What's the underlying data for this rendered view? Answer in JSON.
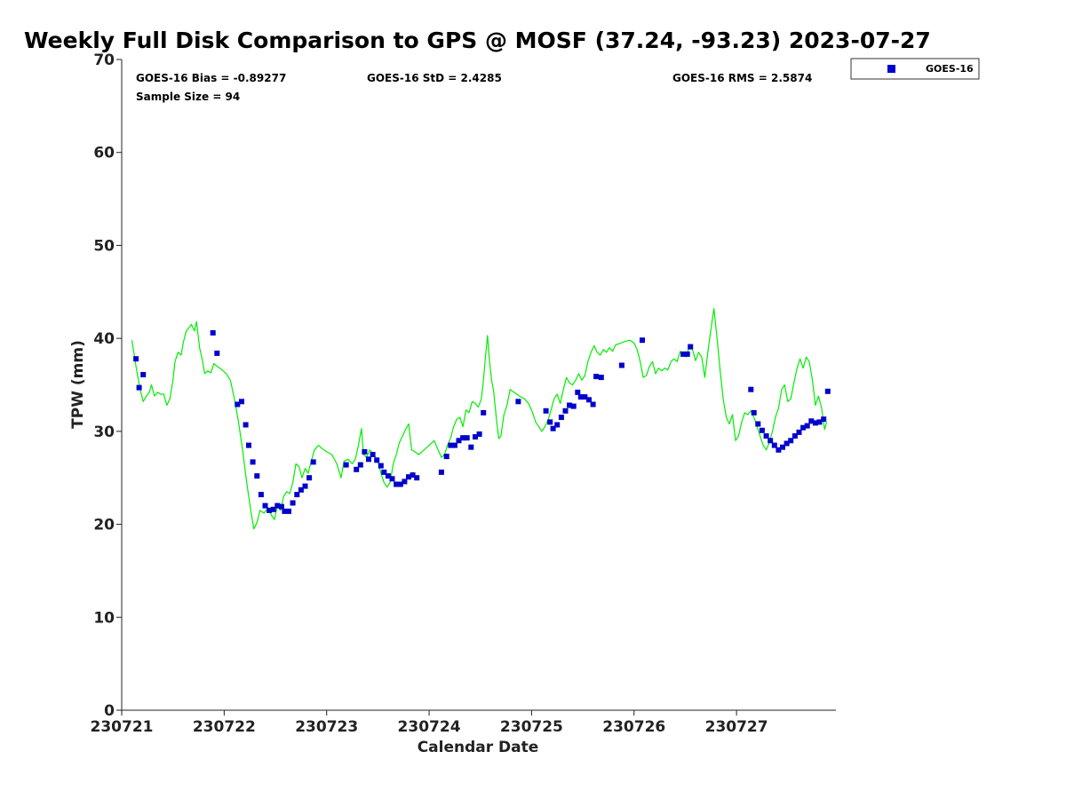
{
  "chart_data": {
    "type": "scatter",
    "title": "Weekly Full Disk Comparison to GPS @ MOSF (37.24, -93.23) 2023-07-27",
    "xlabel": "Calendar Date",
    "ylabel": "TPW (mm)",
    "xlim": [
      0,
      6.97
    ],
    "ylim": [
      0,
      70
    ],
    "x_ticks": [
      0,
      1,
      2,
      3,
      4,
      5,
      6
    ],
    "x_tick_labels": [
      "230721",
      "230722",
      "230723",
      "230724",
      "230725",
      "230726",
      "230727"
    ],
    "y_ticks": [
      0,
      10,
      20,
      30,
      40,
      50,
      60,
      70
    ],
    "y_tick_labels": [
      "0",
      "10",
      "20",
      "30",
      "40",
      "50",
      "60",
      "70"
    ],
    "stats": {
      "bias": "GOES-16 Bias = -0.89277",
      "std": "GOES-16 StD = 2.4285",
      "rms": "GOES-16 RMS = 2.5874",
      "sample": "Sample Size = 94"
    },
    "legend": {
      "position": "top-right, outside plot",
      "entries": [
        "GOES-16"
      ]
    },
    "colors": {
      "gps_line": "#00ee00",
      "goes_marker": "#0000cc"
    },
    "series": [
      {
        "name": "GPS",
        "style": "line",
        "points": [
          [
            0.1,
            39.8
          ],
          [
            0.14,
            37.0
          ],
          [
            0.18,
            34.5
          ],
          [
            0.21,
            33.2
          ],
          [
            0.24,
            33.8
          ],
          [
            0.27,
            34.2
          ],
          [
            0.29,
            35.0
          ],
          [
            0.32,
            33.8
          ],
          [
            0.35,
            34.2
          ],
          [
            0.38,
            34.0
          ],
          [
            0.41,
            34.0
          ],
          [
            0.44,
            32.8
          ],
          [
            0.47,
            33.5
          ],
          [
            0.5,
            35.5
          ],
          [
            0.52,
            37.5
          ],
          [
            0.55,
            38.5
          ],
          [
            0.58,
            38.2
          ],
          [
            0.6,
            39.5
          ],
          [
            0.63,
            40.8
          ],
          [
            0.66,
            41.2
          ],
          [
            0.68,
            41.5
          ],
          [
            0.71,
            40.8
          ],
          [
            0.73,
            41.8
          ],
          [
            0.76,
            39.0
          ],
          [
            0.79,
            37.5
          ],
          [
            0.81,
            36.2
          ],
          [
            0.84,
            36.5
          ],
          [
            0.87,
            36.3
          ],
          [
            0.9,
            37.3
          ],
          [
            0.93,
            37.0
          ],
          [
            0.96,
            36.8
          ],
          [
            0.99,
            36.5
          ],
          [
            1.02,
            36.2
          ],
          [
            1.06,
            35.5
          ],
          [
            1.1,
            33.5
          ],
          [
            1.14,
            31.0
          ],
          [
            1.18,
            28.0
          ],
          [
            1.22,
            24.5
          ],
          [
            1.26,
            21.5
          ],
          [
            1.29,
            19.5
          ],
          [
            1.32,
            20.2
          ],
          [
            1.35,
            21.5
          ],
          [
            1.39,
            21.2
          ],
          [
            1.43,
            21.8
          ],
          [
            1.46,
            21.0
          ],
          [
            1.49,
            20.5
          ],
          [
            1.52,
            22.0
          ],
          [
            1.55,
            21.5
          ],
          [
            1.58,
            23.0
          ],
          [
            1.61,
            23.5
          ],
          [
            1.64,
            23.3
          ],
          [
            1.67,
            24.5
          ],
          [
            1.7,
            26.5
          ],
          [
            1.73,
            26.2
          ],
          [
            1.76,
            25.0
          ],
          [
            1.79,
            26.0
          ],
          [
            1.82,
            25.5
          ],
          [
            1.85,
            26.8
          ],
          [
            1.88,
            28.0
          ],
          [
            1.92,
            28.5
          ],
          [
            1.95,
            28.2
          ],
          [
            2.0,
            27.8
          ],
          [
            2.05,
            27.5
          ],
          [
            2.1,
            26.5
          ],
          [
            2.14,
            25.0
          ],
          [
            2.17,
            26.8
          ],
          [
            2.21,
            27.0
          ],
          [
            2.25,
            26.5
          ],
          [
            2.28,
            27.0
          ],
          [
            2.31,
            28.5
          ],
          [
            2.34,
            30.3
          ],
          [
            2.36,
            27.5
          ],
          [
            2.39,
            27.2
          ],
          [
            2.42,
            28.0
          ],
          [
            2.46,
            27.5
          ],
          [
            2.5,
            26.8
          ],
          [
            2.53,
            25.5
          ],
          [
            2.56,
            24.5
          ],
          [
            2.59,
            24.0
          ],
          [
            2.62,
            24.5
          ],
          [
            2.65,
            26.5
          ],
          [
            2.68,
            27.5
          ],
          [
            2.71,
            28.8
          ],
          [
            2.74,
            29.5
          ],
          [
            2.77,
            30.2
          ],
          [
            2.8,
            30.8
          ],
          [
            2.83,
            28.0
          ],
          [
            2.86,
            27.8
          ],
          [
            2.9,
            27.5
          ],
          [
            2.95,
            28.0
          ],
          [
            3.0,
            28.5
          ],
          [
            3.05,
            29.0
          ],
          [
            3.08,
            28.2
          ],
          [
            3.12,
            27.2
          ],
          [
            3.15,
            27.5
          ],
          [
            3.18,
            28.5
          ],
          [
            3.21,
            29.3
          ],
          [
            3.24,
            30.5
          ],
          [
            3.27,
            31.3
          ],
          [
            3.3,
            31.5
          ],
          [
            3.33,
            30.5
          ],
          [
            3.36,
            32.3
          ],
          [
            3.39,
            32.0
          ],
          [
            3.42,
            33.2
          ],
          [
            3.45,
            33.0
          ],
          [
            3.48,
            32.6
          ],
          [
            3.51,
            33.5
          ],
          [
            3.53,
            35.5
          ],
          [
            3.55,
            38.0
          ],
          [
            3.57,
            40.3
          ],
          [
            3.59,
            37.5
          ],
          [
            3.61,
            35.5
          ],
          [
            3.63,
            34.3
          ],
          [
            3.66,
            31.0
          ],
          [
            3.68,
            29.2
          ],
          [
            3.7,
            29.5
          ],
          [
            3.73,
            31.8
          ],
          [
            3.76,
            32.8
          ],
          [
            3.79,
            34.5
          ],
          [
            3.83,
            34.2
          ],
          [
            3.88,
            33.8
          ],
          [
            3.93,
            33.5
          ],
          [
            3.97,
            33.0
          ],
          [
            4.01,
            32.0
          ],
          [
            4.04,
            31.0
          ],
          [
            4.07,
            30.5
          ],
          [
            4.1,
            30.0
          ],
          [
            4.13,
            30.5
          ],
          [
            4.16,
            31.2
          ],
          [
            4.19,
            32.3
          ],
          [
            4.22,
            33.5
          ],
          [
            4.25,
            34.0
          ],
          [
            4.28,
            33.0
          ],
          [
            4.31,
            34.5
          ],
          [
            4.34,
            35.8
          ],
          [
            4.37,
            35.2
          ],
          [
            4.4,
            35.0
          ],
          [
            4.43,
            35.5
          ],
          [
            4.46,
            36.2
          ],
          [
            4.49,
            35.5
          ],
          [
            4.52,
            36.0
          ],
          [
            4.55,
            37.5
          ],
          [
            4.58,
            38.5
          ],
          [
            4.61,
            39.2
          ],
          [
            4.64,
            38.5
          ],
          [
            4.67,
            38.2
          ],
          [
            4.7,
            38.8
          ],
          [
            4.73,
            38.5
          ],
          [
            4.76,
            39.0
          ],
          [
            4.79,
            38.6
          ],
          [
            4.82,
            39.3
          ],
          [
            4.87,
            39.5
          ],
          [
            4.92,
            39.7
          ],
          [
            4.96,
            39.8
          ],
          [
            5.0,
            39.5
          ],
          [
            5.03,
            38.8
          ],
          [
            5.06,
            37.5
          ],
          [
            5.09,
            35.8
          ],
          [
            5.12,
            36.0
          ],
          [
            5.15,
            37.0
          ],
          [
            5.18,
            37.5
          ],
          [
            5.21,
            36.2
          ],
          [
            5.24,
            36.8
          ],
          [
            5.27,
            36.5
          ],
          [
            5.3,
            36.8
          ],
          [
            5.33,
            36.6
          ],
          [
            5.36,
            37.5
          ],
          [
            5.39,
            37.8
          ],
          [
            5.42,
            37.5
          ],
          [
            5.45,
            38.6
          ],
          [
            5.48,
            38.4
          ],
          [
            5.51,
            38.0
          ],
          [
            5.54,
            39.2
          ],
          [
            5.57,
            38.8
          ],
          [
            5.6,
            37.6
          ],
          [
            5.63,
            38.5
          ],
          [
            5.66,
            38.0
          ],
          [
            5.69,
            35.8
          ],
          [
            5.72,
            38.5
          ],
          [
            5.75,
            41.0
          ],
          [
            5.78,
            43.2
          ],
          [
            5.81,
            40.0
          ],
          [
            5.84,
            36.5
          ],
          [
            5.87,
            33.5
          ],
          [
            5.9,
            31.5
          ],
          [
            5.93,
            30.8
          ],
          [
            5.96,
            31.8
          ],
          [
            5.99,
            29.0
          ],
          [
            6.02,
            29.5
          ],
          [
            6.05,
            31.0
          ],
          [
            6.08,
            32.0
          ],
          [
            6.11,
            31.8
          ],
          [
            6.14,
            32.2
          ],
          [
            6.17,
            31.5
          ],
          [
            6.2,
            30.5
          ],
          [
            6.23,
            29.5
          ],
          [
            6.26,
            28.5
          ],
          [
            6.29,
            28.0
          ],
          [
            6.32,
            28.8
          ],
          [
            6.35,
            30.0
          ],
          [
            6.38,
            31.5
          ],
          [
            6.41,
            32.5
          ],
          [
            6.44,
            34.5
          ],
          [
            6.47,
            35.0
          ],
          [
            6.5,
            33.2
          ],
          [
            6.53,
            33.5
          ],
          [
            6.56,
            35.2
          ],
          [
            6.59,
            36.8
          ],
          [
            6.62,
            37.8
          ],
          [
            6.65,
            36.8
          ],
          [
            6.68,
            38.0
          ],
          [
            6.71,
            37.5
          ],
          [
            6.74,
            35.5
          ],
          [
            6.77,
            32.8
          ],
          [
            6.8,
            33.8
          ],
          [
            6.83,
            32.5
          ],
          [
            6.86,
            30.2
          ],
          [
            6.88,
            31.0
          ]
        ]
      },
      {
        "name": "GOES-16",
        "style": "marker",
        "points": [
          [
            0.14,
            37.8
          ],
          [
            0.17,
            34.7
          ],
          [
            0.21,
            36.1
          ],
          [
            0.89,
            40.6
          ],
          [
            0.93,
            38.4
          ],
          [
            1.13,
            32.9
          ],
          [
            1.17,
            33.2
          ],
          [
            1.21,
            30.7
          ],
          [
            1.24,
            28.5
          ],
          [
            1.28,
            26.7
          ],
          [
            1.32,
            25.2
          ],
          [
            1.36,
            23.2
          ],
          [
            1.4,
            22.0
          ],
          [
            1.44,
            21.5
          ],
          [
            1.48,
            21.6
          ],
          [
            1.52,
            22.0
          ],
          [
            1.56,
            21.9
          ],
          [
            1.59,
            21.4
          ],
          [
            1.63,
            21.4
          ],
          [
            1.67,
            22.3
          ],
          [
            1.71,
            23.2
          ],
          [
            1.75,
            23.7
          ],
          [
            1.79,
            24.1
          ],
          [
            1.83,
            25.0
          ],
          [
            1.87,
            26.7
          ],
          [
            2.19,
            26.4
          ],
          [
            2.29,
            25.9
          ],
          [
            2.33,
            26.4
          ],
          [
            2.37,
            27.8
          ],
          [
            2.41,
            27.0
          ],
          [
            2.45,
            27.5
          ],
          [
            2.49,
            26.9
          ],
          [
            2.53,
            26.3
          ],
          [
            2.56,
            25.6
          ],
          [
            2.6,
            25.2
          ],
          [
            2.64,
            24.9
          ],
          [
            2.68,
            24.3
          ],
          [
            2.72,
            24.3
          ],
          [
            2.76,
            24.6
          ],
          [
            2.8,
            25.1
          ],
          [
            2.84,
            25.3
          ],
          [
            2.88,
            25.0
          ],
          [
            3.12,
            25.6
          ],
          [
            3.17,
            27.3
          ],
          [
            3.21,
            28.5
          ],
          [
            3.25,
            28.5
          ],
          [
            3.29,
            29.0
          ],
          [
            3.33,
            29.3
          ],
          [
            3.37,
            29.3
          ],
          [
            3.41,
            28.3
          ],
          [
            3.45,
            29.4
          ],
          [
            3.49,
            29.7
          ],
          [
            3.53,
            32.0
          ],
          [
            3.87,
            33.2
          ],
          [
            4.14,
            32.2
          ],
          [
            4.18,
            31.0
          ],
          [
            4.21,
            30.3
          ],
          [
            4.25,
            30.7
          ],
          [
            4.29,
            31.5
          ],
          [
            4.33,
            32.2
          ],
          [
            4.37,
            32.8
          ],
          [
            4.41,
            32.7
          ],
          [
            4.45,
            34.2
          ],
          [
            4.48,
            33.7
          ],
          [
            4.52,
            33.7
          ],
          [
            4.56,
            33.4
          ],
          [
            4.6,
            32.9
          ],
          [
            4.63,
            35.9
          ],
          [
            4.68,
            35.8
          ],
          [
            4.88,
            37.1
          ],
          [
            5.08,
            39.8
          ],
          [
            5.48,
            38.3
          ],
          [
            5.52,
            38.3
          ],
          [
            5.55,
            39.1
          ],
          [
            6.14,
            34.5
          ],
          [
            6.17,
            32.0
          ],
          [
            6.21,
            30.8
          ],
          [
            6.25,
            30.1
          ],
          [
            6.29,
            29.5
          ],
          [
            6.33,
            29.0
          ],
          [
            6.37,
            28.5
          ],
          [
            6.41,
            28.0
          ],
          [
            6.45,
            28.3
          ],
          [
            6.49,
            28.7
          ],
          [
            6.53,
            29.0
          ],
          [
            6.57,
            29.5
          ],
          [
            6.61,
            29.9
          ],
          [
            6.65,
            30.4
          ],
          [
            6.69,
            30.6
          ],
          [
            6.73,
            31.1
          ],
          [
            6.77,
            30.9
          ],
          [
            6.81,
            31.0
          ],
          [
            6.85,
            31.3
          ],
          [
            6.89,
            34.3
          ]
        ]
      }
    ]
  }
}
